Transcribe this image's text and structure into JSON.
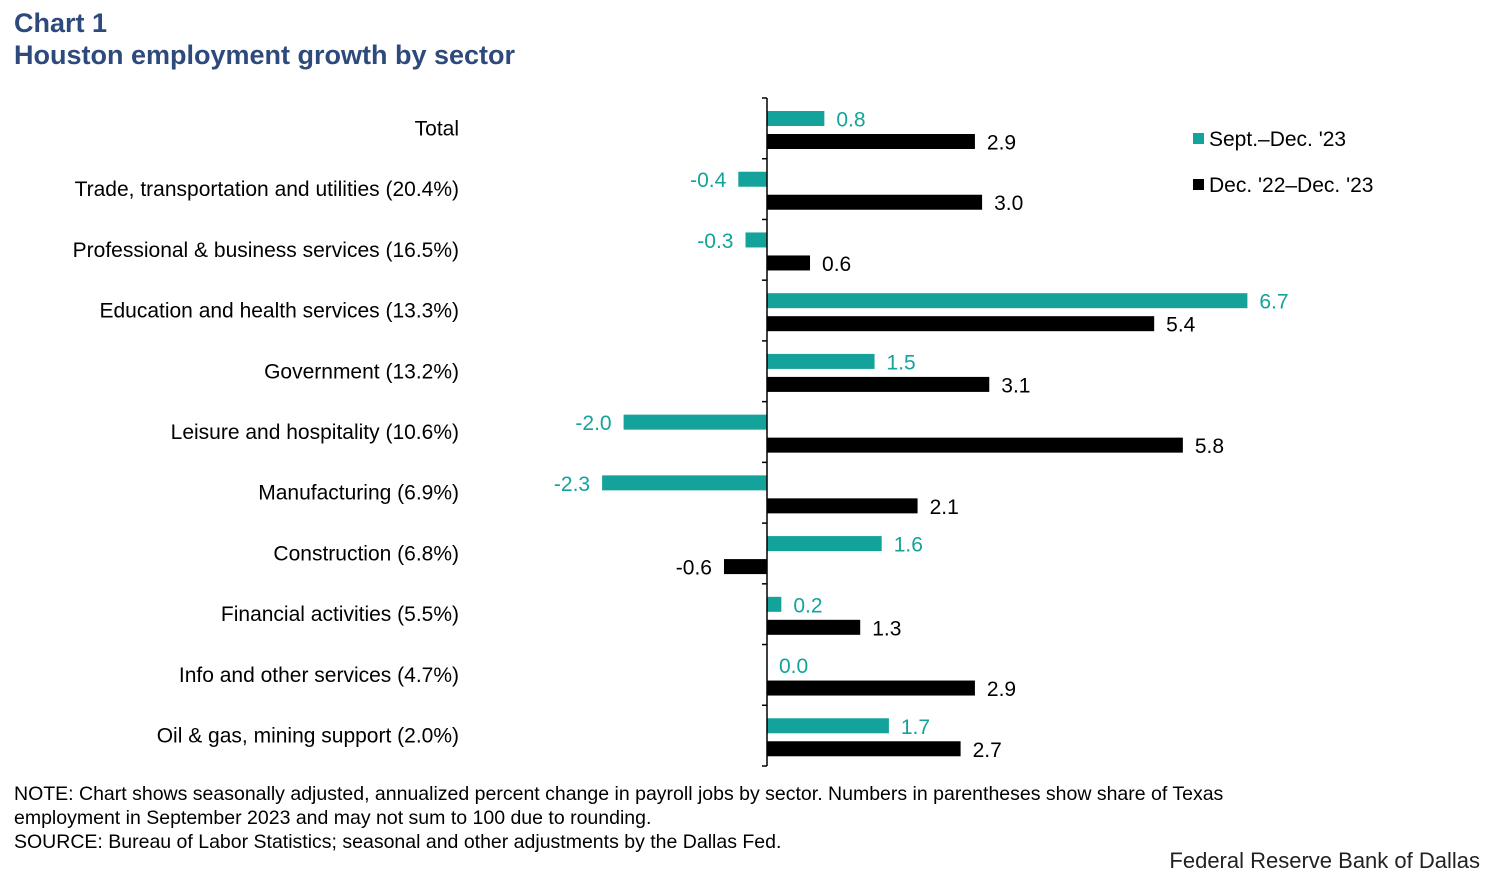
{
  "header": {
    "chart_label": "Chart 1",
    "title": "Houston employment growth by sector"
  },
  "colors": {
    "series1": "#14a39b",
    "series2": "#000000",
    "axis": "#000000"
  },
  "chart_data": {
    "type": "bar",
    "orientation": "horizontal",
    "title": "Houston employment growth by sector",
    "categories": [
      "Total",
      "Trade, transportation and utilities (20.4%)",
      "Professional & business services (16.5%)",
      "Education and health services (13.3%)",
      "Government (13.2%)",
      "Leisure and hospitality (10.6%)",
      "Manufacturing (6.9%)",
      "Construction (6.8%)",
      "Financial activities (5.5%)",
      "Info and other services (4.7%)",
      "Oil & gas, mining support (2.0%)"
    ],
    "series": [
      {
        "name": "Sept.–Dec. '23",
        "values": [
          0.8,
          -0.4,
          -0.3,
          6.7,
          1.5,
          -2.0,
          -2.3,
          1.6,
          0.2,
          0.0,
          1.7
        ],
        "labels": [
          "0.8",
          "-0.4",
          "-0.3",
          "6.7",
          "1.5",
          "-2.0",
          "-2.3",
          "1.6",
          "0.2",
          "0.0",
          "1.7"
        ]
      },
      {
        "name": "Dec. '22–Dec. '23",
        "values": [
          2.9,
          3.0,
          0.6,
          5.4,
          3.1,
          5.8,
          2.1,
          -0.6,
          1.3,
          2.9,
          2.7
        ],
        "labels": [
          "2.9",
          "3.0",
          "0.6",
          "5.4",
          "3.1",
          "5.8",
          "2.1",
          "-0.6",
          "1.3",
          "2.9",
          "2.7"
        ]
      }
    ],
    "xlim": [
      -3,
      7
    ],
    "xlabel": "",
    "ylabel": "",
    "grid": false,
    "legend_position": "top-right"
  },
  "footer": {
    "note_line1": "NOTE: Chart shows seasonally adjusted, annualized  percent change  in payroll jobs by sector. Numbers in parentheses  show share of Texas",
    "note_line2": "employment  in September 2023 and may not sum to 100 due to rounding.",
    "source": "SOURCE: Bureau  of Labor Statistics; seasonal and other adjustments  by the Dallas Fed.",
    "credit": "Federal Reserve Bank of Dallas"
  }
}
